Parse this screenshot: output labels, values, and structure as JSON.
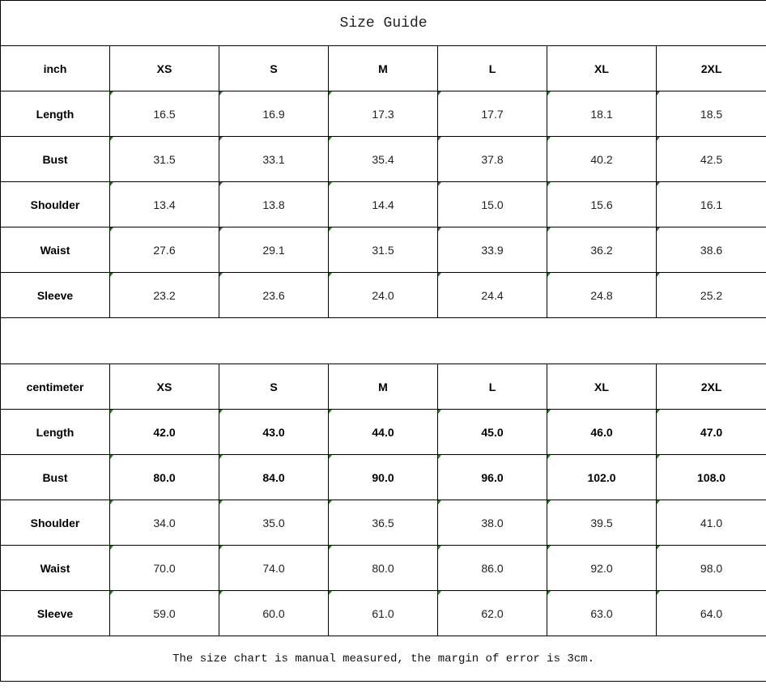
{
  "title": "Size Guide",
  "sizes": [
    "XS",
    "S",
    "M",
    "L",
    "XL",
    "2XL"
  ],
  "inch": {
    "unit": "inch",
    "rows": [
      {
        "label": "Length",
        "values": [
          "16.5",
          "16.9",
          "17.3",
          "17.7",
          "18.1",
          "18.5"
        ]
      },
      {
        "label": "Bust",
        "values": [
          "31.5",
          "33.1",
          "35.4",
          "37.8",
          "40.2",
          "42.5"
        ]
      },
      {
        "label": "Shoulder",
        "values": [
          "13.4",
          "13.8",
          "14.4",
          "15.0",
          "15.6",
          "16.1"
        ]
      },
      {
        "label": "Waist",
        "values": [
          "27.6",
          "29.1",
          "31.5",
          "33.9",
          "36.2",
          "38.6"
        ]
      },
      {
        "label": "Sleeve",
        "values": [
          "23.2",
          "23.6",
          "24.0",
          "24.4",
          "24.8",
          "25.2"
        ]
      }
    ]
  },
  "centimeter": {
    "unit": "centimeter",
    "rows": [
      {
        "label": "Length",
        "values": [
          "42.0",
          "43.0",
          "44.0",
          "45.0",
          "46.0",
          "47.0"
        ]
      },
      {
        "label": "Bust",
        "values": [
          "80.0",
          "84.0",
          "90.0",
          "96.0",
          "102.0",
          "108.0"
        ]
      },
      {
        "label": "Shoulder",
        "values": [
          "34.0",
          "35.0",
          "36.5",
          "38.0",
          "39.5",
          "41.0"
        ]
      },
      {
        "label": "Waist",
        "values": [
          "70.0",
          "74.0",
          "80.0",
          "86.0",
          "92.0",
          "98.0"
        ]
      },
      {
        "label": "Sleeve",
        "values": [
          "59.0",
          "60.0",
          "61.0",
          "62.0",
          "63.0",
          "64.0"
        ]
      }
    ]
  },
  "note": "The size chart is manual measured, the margin of error is 3cm."
}
